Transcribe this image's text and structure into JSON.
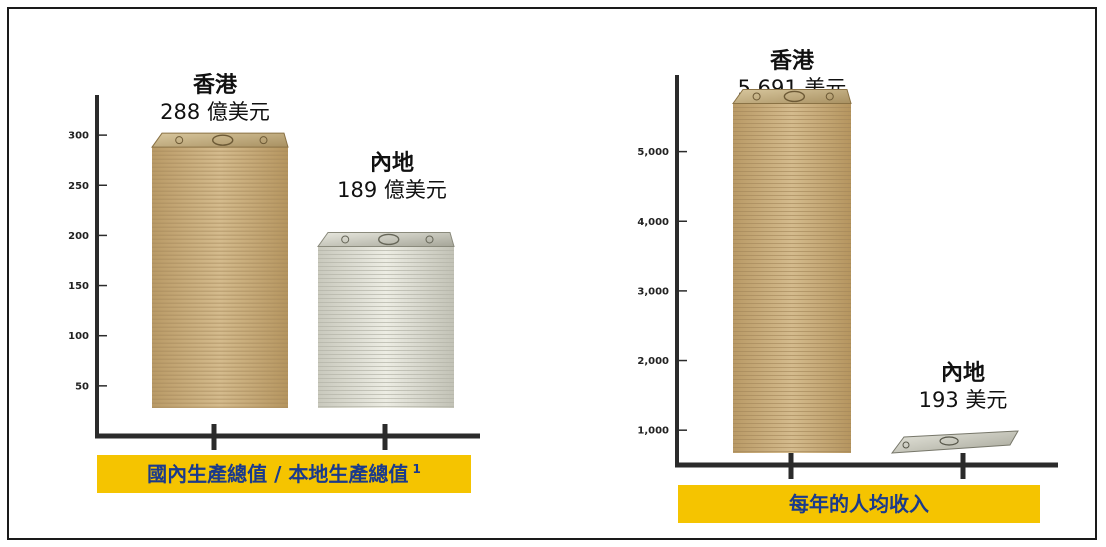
{
  "chart_data": [
    {
      "type": "bar",
      "categories": [
        "香港",
        "內地"
      ],
      "values": [
        288,
        189
      ],
      "value_labels": [
        "288 億美元",
        "189 億美元"
      ],
      "xlabel": "國內生產總值 / 本地生產總值",
      "xlabel_superscript": "1",
      "ylabel": "",
      "yticks": [
        50,
        100,
        150,
        200,
        250,
        300
      ],
      "ytick_labels": [
        "50",
        "100",
        "150",
        "200",
        "250",
        "300"
      ],
      "ylim": [
        0,
        340
      ],
      "grid": false
    },
    {
      "type": "bar",
      "categories": [
        "香港",
        "內地"
      ],
      "values": [
        5691,
        193
      ],
      "value_labels": [
        "5,691 美元",
        "193 美元"
      ],
      "xlabel": "每年的人均收入",
      "ylabel": "",
      "yticks": [
        1000,
        2000,
        3000,
        4000,
        5000
      ],
      "ytick_labels": [
        "1,000",
        "2,000",
        "3,000",
        "4,000",
        "5,000"
      ],
      "ylim": [
        500,
        6100
      ],
      "grid": false
    }
  ],
  "colors": {
    "hk_bills": "#c9ad7c",
    "mainland_bills": "#dcdcd0",
    "axis": "#2b2b2b",
    "banner": "#f5c400",
    "banner_text": "#1a3a8c"
  }
}
